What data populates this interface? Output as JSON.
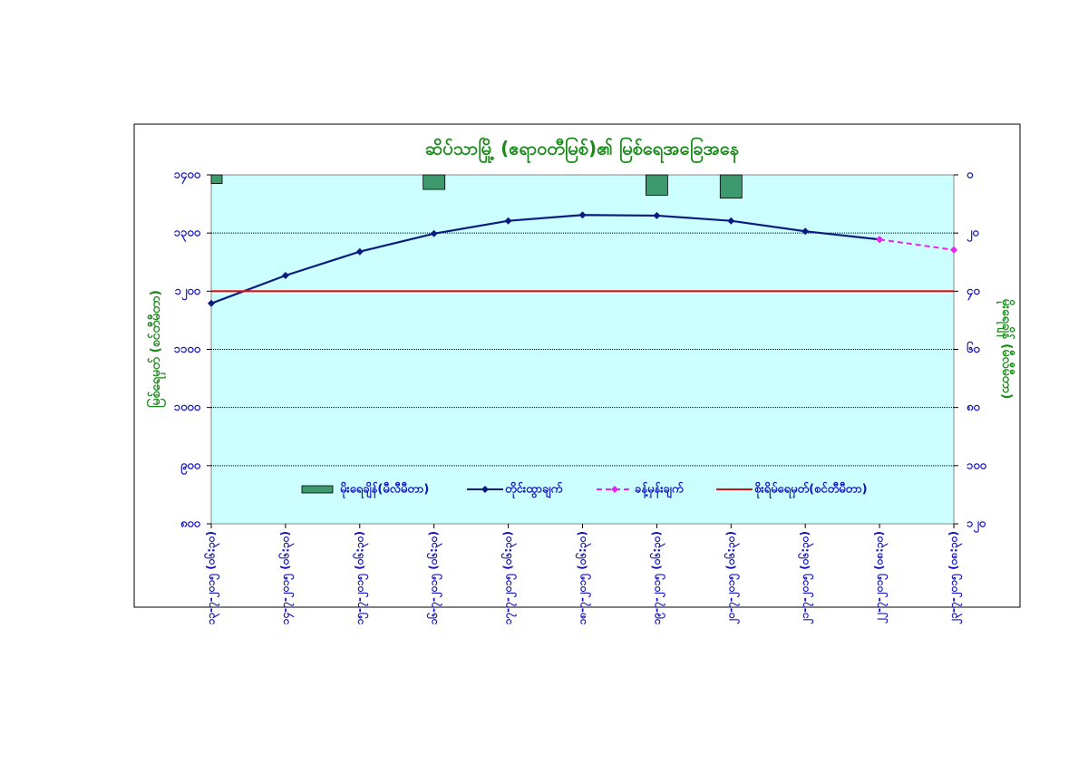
{
  "chart_data": {
    "type": "combo",
    "title": "ဆိပ်သာမြို့ (ဧရာဝတီမြစ်)၏ မြစ်ရေအခြေအနေ",
    "y_label": "မြစ်ရေမှတ် (စင်တီမီတာ)",
    "y2_label": "မိုးရေချိန် (မီလီမီတာ)",
    "categories": [
      "၁၃-၇-၂၀၁၅ (၀၆:၃၀)",
      "၁၄-၇-၂၀၁၅ (၀၆:၃၀)",
      "၁၅-၇-၂၀၁၅ (၀၆:၃၀)",
      "၁၆-၇-၂၀၁၅ (၀၆:၃၀)",
      "၁၇-၇-၂၀၁၅ (၀၆:၃၀)",
      "၁၈-၇-၂၀၁၅ (၀၆:၃၀)",
      "၁၉-၇-၂၀၁၅ (၀၆:၃၀)",
      "၂၀-၇-၂၀၁၅ (၀၆:၃၀)",
      "၂၁-၇-၂၀၁၅ (၀၆:၃၀)",
      "၂၂-၇-၂၀၁၅ (၀၈:၃၀)",
      "၂၃-၇-၂၀၁၅ (၀၈:၃၀)"
    ],
    "series": [
      {
        "name": "မိုးရေချိန်(မီလီမီတာ)",
        "kind": "bar",
        "axis": "y2",
        "color": "#3c9a6e",
        "values": [
          3,
          0,
          0,
          5,
          0,
          0,
          7,
          8,
          0,
          0,
          null
        ]
      },
      {
        "name": "တိုင်းထွာချက်",
        "kind": "line",
        "color": "#0a1a80",
        "marker": true,
        "values": [
          1179,
          1227,
          1268,
          1299,
          1321,
          1331,
          1330,
          1321,
          1303,
          1289,
          null
        ]
      },
      {
        "name": "ခန့်မှန်းချက်",
        "kind": "line",
        "color": "#ee22ee",
        "dashed": true,
        "marker": true,
        "values": [
          null,
          null,
          null,
          null,
          null,
          null,
          null,
          null,
          null,
          1289,
          1271
        ]
      },
      {
        "name": "စိုးရိမ်ရေမှတ်(စင်တီမီတာ)",
        "kind": "line",
        "color": "#e01010",
        "values": [
          1200,
          1200,
          1200,
          1200,
          1200,
          1200,
          1200,
          1200,
          1200,
          1200,
          1200
        ]
      }
    ],
    "ylim": [
      800,
      1400
    ],
    "yticks": [
      {
        "value": 800,
        "label": "၈၀၀"
      },
      {
        "value": 900,
        "label": "၉၀၀"
      },
      {
        "value": 1000,
        "label": "၁၀၀၀"
      },
      {
        "value": 1100,
        "label": "၁၁၀၀"
      },
      {
        "value": 1200,
        "label": "၁၂၀၀"
      },
      {
        "value": 1300,
        "label": "၁၃၀၀"
      },
      {
        "value": 1400,
        "label": "၁၄၀၀"
      }
    ],
    "y2lim": [
      0,
      120
    ],
    "y2_inverted": true,
    "y2ticks": [
      {
        "value": 0,
        "label": "၀"
      },
      {
        "value": 20,
        "label": "၂၀"
      },
      {
        "value": 40,
        "label": "၄၀"
      },
      {
        "value": 60,
        "label": "၆၀"
      },
      {
        "value": 80,
        "label": "၈၀"
      },
      {
        "value": 100,
        "label": "၁၀၀"
      },
      {
        "value": 120,
        "label": "၁၂၀"
      }
    ],
    "grid": true
  }
}
